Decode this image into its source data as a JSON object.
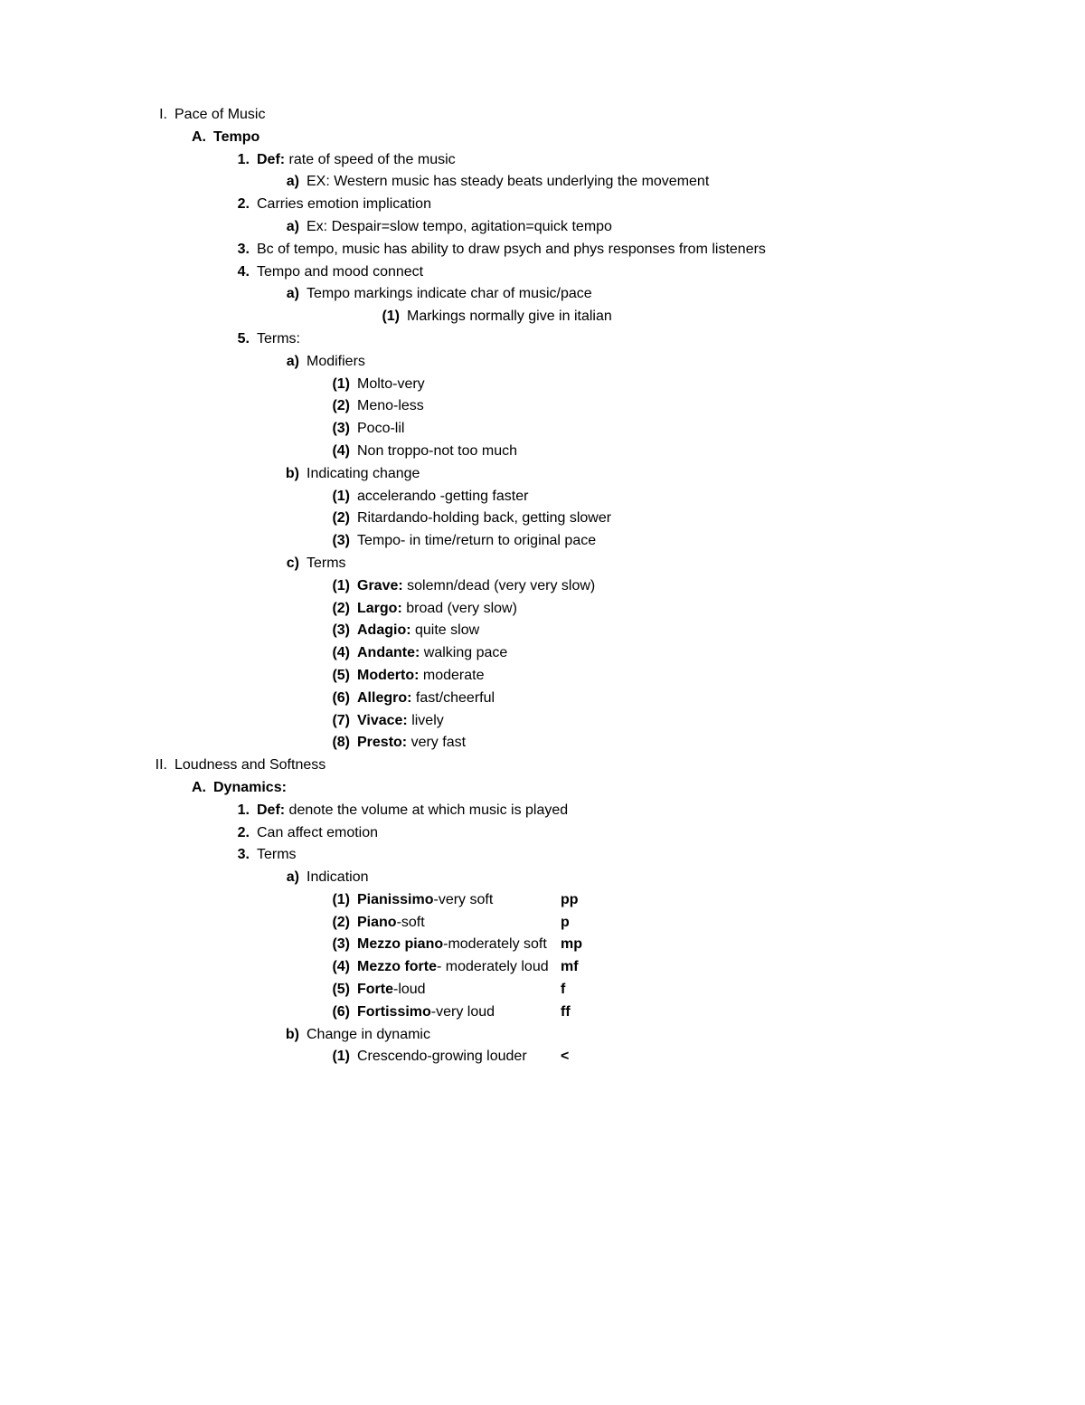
{
  "sectionI": {
    "roman": "I.",
    "title": "Pace of Music",
    "A": {
      "marker": "A.",
      "title": "Tempo",
      "items": {
        "1": {
          "marker": "1.",
          "label": "Def:",
          "text": " rate of speed of the music",
          "a": {
            "marker": "a)",
            "text": "EX: Western music has steady beats underlying the movement"
          }
        },
        "2": {
          "marker": "2.",
          "text": "Carries emotion implication",
          "a": {
            "marker": "a)",
            "text": "Ex: Despair=slow tempo, agitation=quick tempo"
          }
        },
        "3": {
          "marker": "3.",
          "text": "Bc of tempo, music has ability to draw psych and phys responses from listeners"
        },
        "4": {
          "marker": "4.",
          "text": "Tempo and mood connect",
          "a": {
            "marker": "a)",
            "text": "Tempo markings indicate char of music/pace",
            "1": {
              "marker": "(1)",
              "text": "Markings normally give in italian"
            }
          }
        },
        "5": {
          "marker": "5.",
          "text": "Terms:",
          "a": {
            "marker": "a)",
            "text": "Modifiers",
            "1": {
              "marker": "(1)",
              "text": "Molto-very"
            },
            "2": {
              "marker": "(2)",
              "text": "Meno-less"
            },
            "3": {
              "marker": "(3)",
              "text": "Poco-lil"
            },
            "4": {
              "marker": "(4)",
              "text": "Non troppo-not too much"
            }
          },
          "b": {
            "marker": "b)",
            "text": "Indicating change",
            "1": {
              "marker": "(1)",
              "text": "accelerando -getting faster"
            },
            "2": {
              "marker": "(2)",
              "text": "Ritardando-holding back, getting slower"
            },
            "3": {
              "marker": "(3)",
              "text": "Tempo- in time/return to original pace"
            }
          },
          "c": {
            "marker": "c)",
            "text": "Terms",
            "1": {
              "marker": "(1)",
              "label": "Grave:",
              "text": " solemn/dead (very very slow)"
            },
            "2": {
              "marker": "(2)",
              "label": "Largo:",
              "text": " broad (very slow)"
            },
            "3": {
              "marker": "(3)",
              "label": "Adagio:",
              "text": " quite slow"
            },
            "4": {
              "marker": "(4)",
              "label": "Andante:",
              "text": " walking pace"
            },
            "5": {
              "marker": "(5)",
              "label": "Moderto:",
              "text": " moderate"
            },
            "6": {
              "marker": "(6)",
              "label": "Allegro:",
              "text": " fast/cheerful"
            },
            "7": {
              "marker": "(7)",
              "label": "Vivace:",
              "text": " lively"
            },
            "8": {
              "marker": "(8)",
              "label": "Presto:",
              "text": " very fast"
            }
          }
        }
      }
    }
  },
  "sectionII": {
    "roman": "II.",
    "title": "Loudness and Softness",
    "A": {
      "marker": "A.",
      "title": "Dynamics:",
      "items": {
        "1": {
          "marker": "1.",
          "label": "Def:",
          "text": " denote the volume at which music is played"
        },
        "2": {
          "marker": "2.",
          "text": "Can affect emotion"
        },
        "3": {
          "marker": "3.",
          "text": "Terms",
          "a": {
            "marker": "a)",
            "text": "Indication",
            "1": {
              "marker": "(1)",
              "label": "Pianissimo",
              "text": "-very soft",
              "abbr": "pp"
            },
            "2": {
              "marker": "(2)",
              "label": "Piano",
              "text": "-soft",
              "abbr": "p"
            },
            "3": {
              "marker": "(3)",
              "label": "Mezzo piano",
              "text": "-moderately soft",
              "abbr": "mp"
            },
            "4": {
              "marker": "(4)",
              "label": "Mezzo forte",
              "text": "- moderately loud",
              "abbr": "mf"
            },
            "5": {
              "marker": "(5)",
              "label": "Forte",
              "text": "-loud",
              "abbr": "f"
            },
            "6": {
              "marker": "(6)",
              "label": "Fortissimo",
              "text": "-very loud",
              "abbr": "ff"
            }
          },
          "b": {
            "marker": "b)",
            "text": "Change in dynamic",
            "1": {
              "marker": "(1)",
              "text": "Crescendo-growing louder",
              "abbr": "<"
            }
          }
        }
      }
    }
  }
}
